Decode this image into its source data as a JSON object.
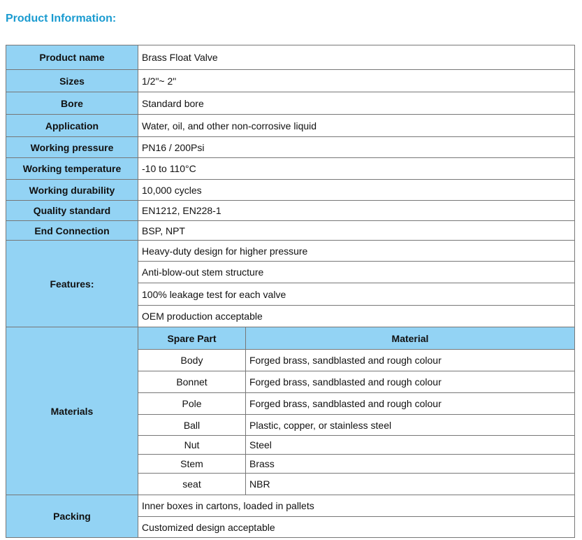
{
  "title": "Product Information:",
  "colors": {
    "title": "#1a9bd0",
    "header_bg": "#93d3f4"
  },
  "rows": [
    {
      "label": "Product name",
      "value": "Brass Float Valve"
    },
    {
      "label": "Sizes",
      "value": "1/2\"~ 2\""
    },
    {
      "label": "Bore",
      "value": "Standard bore"
    },
    {
      "label": "Application",
      "value": "Water, oil, and other non-corrosive liquid"
    },
    {
      "label": "Working pressure",
      "value": "PN16 / 200Psi"
    },
    {
      "label": "Working temperature",
      "value": "-10 to 110°C"
    },
    {
      "label": "Working durability",
      "value": "10,000 cycles"
    },
    {
      "label": "Quality standard",
      "value": "EN1212, EN228-1"
    },
    {
      "label": "End Connection",
      "value": "BSP, NPT"
    }
  ],
  "features": {
    "label": "Features:",
    "items": [
      "Heavy-duty design for higher pressure",
      "Anti-blow-out stem structure",
      "100% leakage test for each valve",
      "OEM production acceptable"
    ]
  },
  "materials": {
    "label": "Materials",
    "headers": [
      "Spare Part",
      "Material"
    ],
    "rows": [
      [
        "Body",
        "Forged brass, sandblasted and rough colour"
      ],
      [
        "Bonnet",
        "Forged brass, sandblasted and rough colour"
      ],
      [
        "Pole",
        "Forged brass, sandblasted and rough colour"
      ],
      [
        "Ball",
        "Plastic, copper, or stainless steel"
      ],
      [
        "Nut",
        "Steel"
      ],
      [
        "Stem",
        "Brass"
      ],
      [
        "seat",
        "NBR"
      ]
    ]
  },
  "packing": {
    "label": "Packing",
    "items": [
      "Inner boxes in cartons, loaded in pallets",
      "Customized design acceptable"
    ]
  }
}
